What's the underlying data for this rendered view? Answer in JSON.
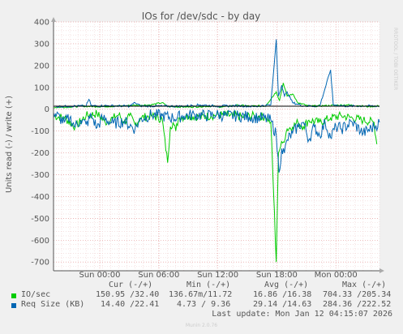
{
  "chart_data": {
    "type": "line",
    "title": "IOs for /dev/sdc - by day",
    "ylabel": "Units read (-) / write (+)",
    "watermark": "RRDTOOL / TOBI OETIKER",
    "ylim": [
      -740,
      400
    ],
    "yticks": [
      400,
      300,
      200,
      100,
      0,
      -100,
      -200,
      -300,
      -400,
      -500,
      -600,
      -700
    ],
    "xticks": [
      "Sun 00:00",
      "Sun 06:00",
      "Sun 12:00",
      "Sun 18:00",
      "Mon 00:00"
    ],
    "series": [
      {
        "name": "IO/sec",
        "color": "#00cc00",
        "write": [
          [
            0,
            8
          ],
          [
            3,
            10
          ],
          [
            5,
            14
          ],
          [
            8,
            12
          ],
          [
            12,
            14
          ],
          [
            15,
            18
          ],
          [
            18,
            20
          ],
          [
            20,
            30
          ],
          [
            21,
            12
          ],
          [
            25,
            10
          ],
          [
            29,
            14
          ],
          [
            31,
            10
          ],
          [
            34,
            18
          ],
          [
            36,
            14
          ],
          [
            39,
            15
          ],
          [
            41,
            80
          ],
          [
            41.6,
            40
          ],
          [
            42.3,
            120
          ],
          [
            43,
            60
          ],
          [
            44,
            70
          ],
          [
            45,
            30
          ],
          [
            47,
            14
          ],
          [
            50,
            16
          ],
          [
            54,
            20
          ],
          [
            56,
            16
          ],
          [
            58,
            12
          ],
          [
            60,
            15
          ]
        ],
        "read": [
          [
            0,
            -30
          ],
          [
            2,
            -40
          ],
          [
            4,
            -80
          ],
          [
            6,
            -30
          ],
          [
            8,
            -20
          ],
          [
            9.5,
            -60
          ],
          [
            11,
            -40
          ],
          [
            12,
            -25
          ],
          [
            13,
            -60
          ],
          [
            14,
            -30
          ],
          [
            15,
            -70
          ],
          [
            16,
            -40
          ],
          [
            18,
            -30
          ],
          [
            20,
            -45
          ],
          [
            21,
            -245
          ],
          [
            21.5,
            -80
          ],
          [
            22,
            -60
          ],
          [
            22.5,
            -100
          ],
          [
            23,
            -40
          ],
          [
            25,
            -30
          ],
          [
            27,
            -35
          ],
          [
            29,
            -30
          ],
          [
            31,
            -25
          ],
          [
            33,
            -30
          ],
          [
            35,
            -35
          ],
          [
            37,
            -30
          ],
          [
            39,
            -35
          ],
          [
            40,
            -60
          ],
          [
            41,
            -700
          ],
          [
            41.4,
            -200
          ],
          [
            41.8,
            -170
          ],
          [
            42.3,
            -150
          ],
          [
            43,
            -90
          ],
          [
            44,
            -80
          ],
          [
            45,
            -60
          ],
          [
            46,
            -80
          ],
          [
            47,
            -50
          ],
          [
            49,
            -60
          ],
          [
            51,
            -40
          ],
          [
            53,
            -30
          ],
          [
            55,
            -40
          ],
          [
            57,
            -50
          ],
          [
            59,
            -60
          ],
          [
            59.5,
            -160
          ]
        ]
      },
      {
        "name": "Req Size (KB)",
        "color": "#0066b3",
        "write": [
          [
            0,
            12
          ],
          [
            3,
            14
          ],
          [
            6,
            15
          ],
          [
            6.5,
            45
          ],
          [
            7,
            15
          ],
          [
            10,
            16
          ],
          [
            14,
            14
          ],
          [
            15,
            30
          ],
          [
            16,
            15
          ],
          [
            20,
            14
          ],
          [
            24,
            14
          ],
          [
            27,
            20
          ],
          [
            30,
            14
          ],
          [
            34,
            16
          ],
          [
            37,
            12
          ],
          [
            40,
            20
          ],
          [
            41,
            320
          ],
          [
            41.4,
            60
          ],
          [
            42,
            110
          ],
          [
            42.5,
            60
          ],
          [
            43,
            80
          ],
          [
            44,
            30
          ],
          [
            46,
            15
          ],
          [
            49,
            14
          ],
          [
            51,
            180
          ],
          [
            51.5,
            20
          ],
          [
            54,
            14
          ],
          [
            57,
            15
          ],
          [
            60,
            14
          ]
        ],
        "read": [
          [
            0,
            -15
          ],
          [
            2,
            -60
          ],
          [
            3,
            -40
          ],
          [
            4,
            -80
          ],
          [
            5,
            -50
          ],
          [
            6,
            -70
          ],
          [
            7,
            -30
          ],
          [
            8,
            -85
          ],
          [
            9,
            -40
          ],
          [
            11,
            -65
          ],
          [
            13,
            -55
          ],
          [
            15,
            -90
          ],
          [
            16,
            -45
          ],
          [
            18,
            -25
          ],
          [
            20,
            -30
          ],
          [
            22,
            -40
          ],
          [
            24,
            -30
          ],
          [
            26,
            -25
          ],
          [
            28,
            -30
          ],
          [
            30,
            -25
          ],
          [
            32,
            -30
          ],
          [
            34,
            -30
          ],
          [
            36,
            -35
          ],
          [
            38,
            -40
          ],
          [
            40,
            -50
          ],
          [
            41,
            -120
          ],
          [
            41.5,
            -290
          ],
          [
            42,
            -180
          ],
          [
            42.5,
            -200
          ],
          [
            43,
            -140
          ],
          [
            44,
            -110
          ],
          [
            45,
            -80
          ],
          [
            46,
            -60
          ],
          [
            47,
            -140
          ],
          [
            48,
            -80
          ],
          [
            49,
            -120
          ],
          [
            50,
            -60
          ],
          [
            51,
            -130
          ],
          [
            52,
            -80
          ],
          [
            53,
            -90
          ],
          [
            55,
            -60
          ],
          [
            57,
            -110
          ],
          [
            59,
            -80
          ],
          [
            60,
            -60
          ]
        ]
      }
    ]
  },
  "legend": {
    "headers": [
      "Cur (-/+)",
      "Min (-/+)",
      "Avg (-/+)",
      "Max (-/+)"
    ],
    "rows": [
      {
        "label": "IO/sec",
        "cur": "150.95 /32.40",
        "min": "136.67m/11.72",
        "avg": "16.86 /16.38",
        "max": "704.33 /205.34"
      },
      {
        "label": "Req Size (KB)",
        "cur": "14.40 /22.41",
        "min": "4.73 / 9.36",
        "avg": "29.14 /14.63",
        "max": "284.36 /222.52"
      }
    ],
    "last_update": "Last update: Mon Jan 12 04:15:07 2026"
  },
  "footer": "Munin 2.0.76"
}
